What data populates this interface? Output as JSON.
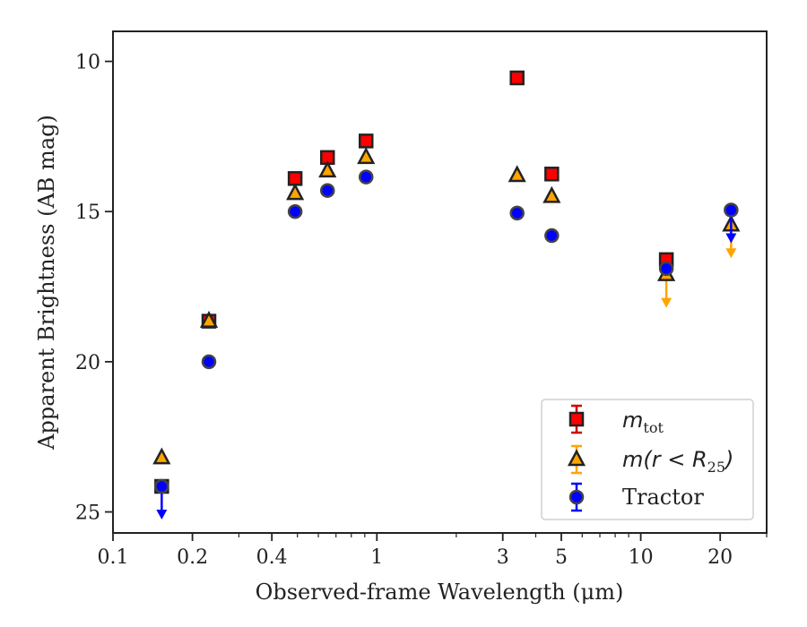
{
  "chart_data": {
    "type": "scatter",
    "xlabel": "Observed-frame Wavelength (μm)",
    "ylabel": "Apparent Brightness (AB mag)",
    "xscale": "log",
    "xlim": [
      0.1,
      30
    ],
    "ylim": [
      25.7,
      9.0
    ],
    "y_inverted": true,
    "x_ticks": [
      0.1,
      0.2,
      0.4,
      1,
      3,
      5,
      10,
      20
    ],
    "x_tick_labels": [
      "0.1",
      "0.2",
      "0.4",
      "1",
      "3",
      "5",
      "10",
      "20"
    ],
    "y_ticks": [
      10,
      15,
      20,
      25
    ],
    "y_tick_labels": [
      "10",
      "15",
      "20",
      "25"
    ],
    "legend_position": "lower right",
    "series": [
      {
        "name": "m_tot",
        "marker": "square",
        "color": "#ff0000",
        "errcolor": "#cc0000",
        "points": [
          {
            "x": 0.153,
            "y": 24.15
          },
          {
            "x": 0.231,
            "y": 18.65
          },
          {
            "x": 0.49,
            "y": 13.9
          },
          {
            "x": 0.65,
            "y": 13.2
          },
          {
            "x": 0.91,
            "y": 12.65
          },
          {
            "x": 3.4,
            "y": 10.55
          },
          {
            "x": 4.6,
            "y": 13.75
          },
          {
            "x": 12.5,
            "y": 16.6
          }
        ]
      },
      {
        "name": "m(r < R_25)",
        "marker": "triangle",
        "color": "#ffa500",
        "errcolor": "#ffa500",
        "points": [
          {
            "x": 0.153,
            "y": 23.2
          },
          {
            "x": 0.231,
            "y": 18.65
          },
          {
            "x": 0.49,
            "y": 14.4
          },
          {
            "x": 0.65,
            "y": 13.65
          },
          {
            "x": 0.91,
            "y": 13.2
          },
          {
            "x": 3.4,
            "y": 13.8
          },
          {
            "x": 4.6,
            "y": 14.5
          },
          {
            "x": 12.5,
            "y": 17.1,
            "upper_limit": true
          },
          {
            "x": 22,
            "y": 15.45,
            "upper_limit": true
          }
        ]
      },
      {
        "name": "Tractor",
        "marker": "circle",
        "color": "#0000ff",
        "errcolor": "#0000ff",
        "points": [
          {
            "x": 0.153,
            "y": 24.15,
            "upper_limit": true
          },
          {
            "x": 0.231,
            "y": 20.0
          },
          {
            "x": 0.49,
            "y": 15.0
          },
          {
            "x": 0.65,
            "y": 14.3
          },
          {
            "x": 0.91,
            "y": 13.85
          },
          {
            "x": 3.4,
            "y": 15.05
          },
          {
            "x": 4.6,
            "y": 15.8
          },
          {
            "x": 12.5,
            "y": 16.9
          },
          {
            "x": 22,
            "y": 14.95,
            "upper_limit": true
          }
        ]
      }
    ],
    "legend": [
      {
        "label": "m",
        "sub": "tot"
      },
      {
        "label": "m(r < R",
        "sub": "25",
        "suffix": ")"
      },
      {
        "label": "Tractor"
      }
    ]
  }
}
